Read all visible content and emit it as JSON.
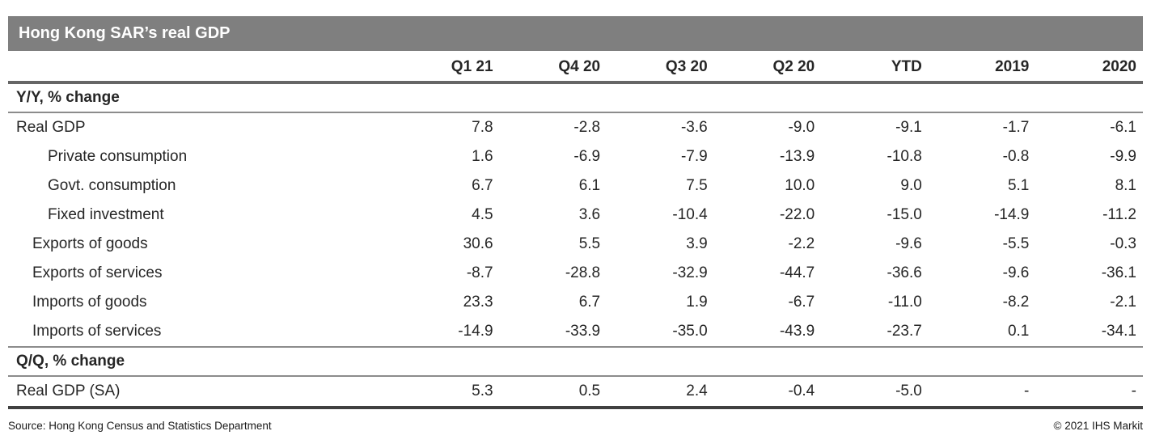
{
  "header": {
    "title": "Hong Kong SAR’s real GDP"
  },
  "colors": {
    "title_bar_bg": "#7f7f7f",
    "title_text": "#ffffff",
    "heavy_rule": "#666666",
    "section_rule": "#8c8c8c",
    "bottom_rule": "#404040",
    "body_text": "#262626"
  },
  "chart_data": {
    "type": "table",
    "title": "Hong Kong SAR’s real GDP",
    "columns": [
      "Q1 21",
      "Q4 20",
      "Q3 20",
      "Q2 20",
      "YTD",
      "2019",
      "2020"
    ],
    "sections": [
      {
        "label": "Y/Y, % change",
        "rows": [
          {
            "label": "Real GDP",
            "indent": 0,
            "values": [
              "7.8",
              "-2.8",
              "-3.6",
              "-9.0",
              "-9.1",
              "-1.7",
              "-6.1"
            ]
          },
          {
            "label": "Private consumption",
            "indent": 2,
            "values": [
              "1.6",
              "-6.9",
              "-7.9",
              "-13.9",
              "-10.8",
              "-0.8",
              "-9.9"
            ]
          },
          {
            "label": "Govt. consumption",
            "indent": 2,
            "values": [
              "6.7",
              "6.1",
              "7.5",
              "10.0",
              "9.0",
              "5.1",
              "8.1"
            ]
          },
          {
            "label": "Fixed investment",
            "indent": 2,
            "values": [
              "4.5",
              "3.6",
              "-10.4",
              "-22.0",
              "-15.0",
              "-14.9",
              "-11.2"
            ]
          },
          {
            "label": "Exports of goods",
            "indent": 1,
            "values": [
              "30.6",
              "5.5",
              "3.9",
              "-2.2",
              "-9.6",
              "-5.5",
              "-0.3"
            ]
          },
          {
            "label": "Exports of services",
            "indent": 1,
            "values": [
              "-8.7",
              "-28.8",
              "-32.9",
              "-44.7",
              "-36.6",
              "-9.6",
              "-36.1"
            ]
          },
          {
            "label": "Imports of goods",
            "indent": 1,
            "values": [
              "23.3",
              "6.7",
              "1.9",
              "-6.7",
              "-11.0",
              "-8.2",
              "-2.1"
            ]
          },
          {
            "label": "Imports of services",
            "indent": 1,
            "values": [
              "-14.9",
              "-33.9",
              "-35.0",
              "-43.9",
              "-23.7",
              "0.1",
              "-34.1"
            ]
          }
        ]
      },
      {
        "label": "Q/Q, % change",
        "rows": [
          {
            "label": "Real GDP (SA)",
            "indent": 0,
            "values": [
              "5.3",
              "0.5",
              "2.4",
              "-0.4",
              "-5.0",
              "-",
              "-"
            ]
          }
        ]
      }
    ]
  },
  "footer": {
    "source": "Source: Hong Kong Census and Statistics Department",
    "copyright": "© 2021 IHS Markit"
  }
}
